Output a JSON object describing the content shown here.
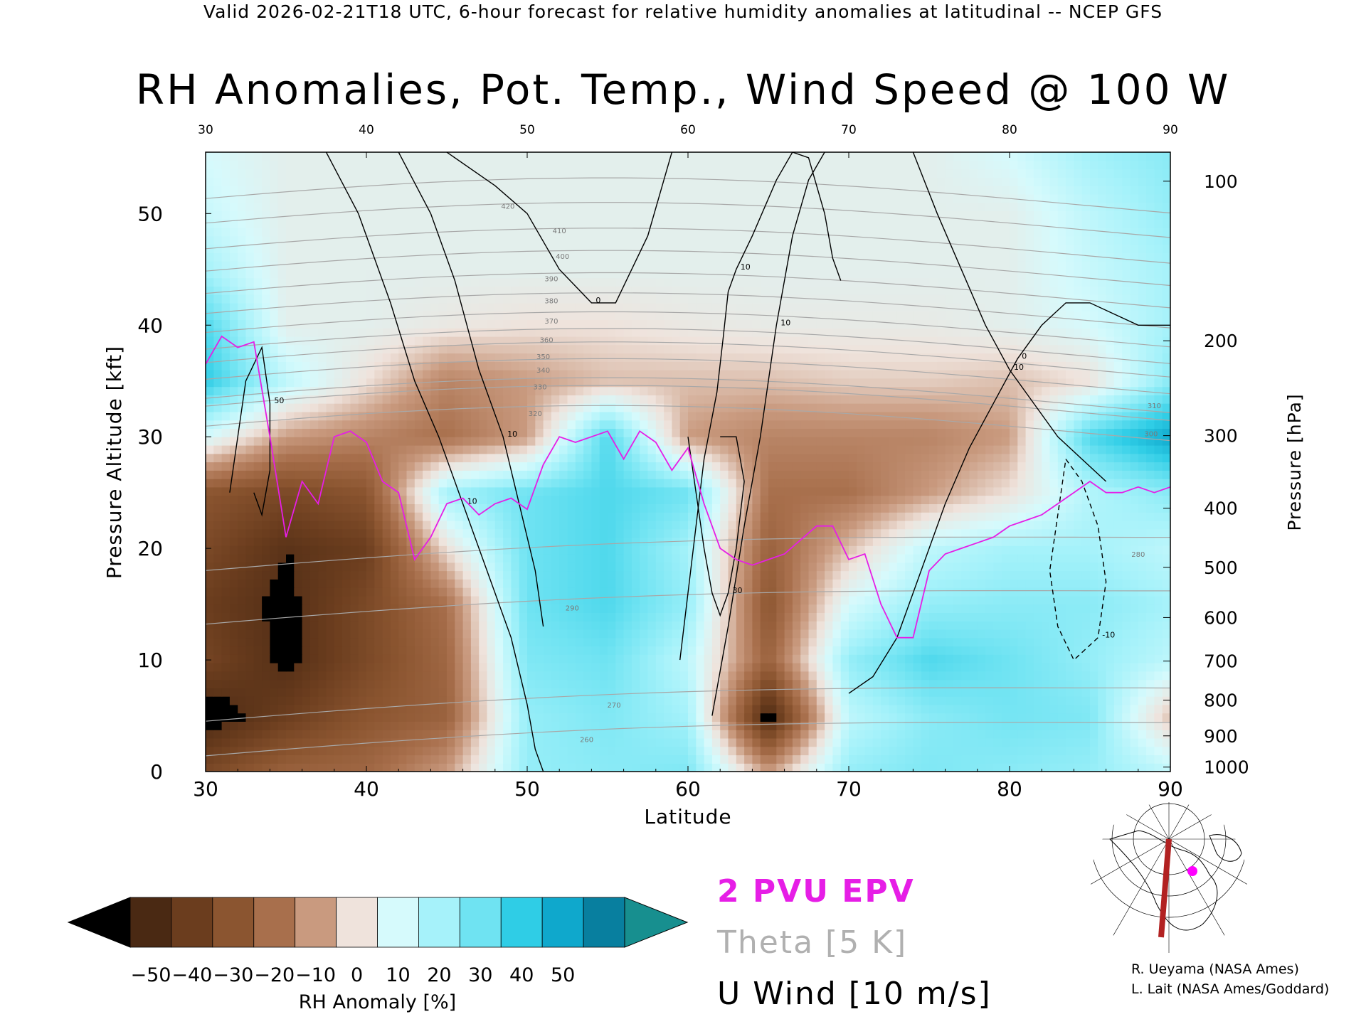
{
  "header": "Valid 2026-02-21T18 UTC, 6-hour forecast for relative humidity anomalies at latitudinal -- NCEP GFS",
  "title": "RH Anomalies, Pot. Temp., Wind Speed @ 100 W",
  "legend": {
    "epv": "2 PVU EPV",
    "theta": "Theta [5 K]",
    "wind": "U Wind [10 m/s]"
  },
  "credits": [
    "R. Ueyama (NASA Ames)",
    "L. Lait (NASA Ames/Goddard)"
  ],
  "colors": {
    "epv": "#e61ee6",
    "theta": "#a8a8a8",
    "wind": "#000000",
    "section_line": "#b22222",
    "location_dot": "#ff00ff"
  },
  "chart_data": {
    "type": "heatmap",
    "xlabel": "Latitude",
    "ylabel": "Pressure Altitude [kft]",
    "ylabel_right": "Pressure [hPa]",
    "xlim": [
      30,
      90
    ],
    "ylim": [
      0,
      55.5
    ],
    "x_ticks": [
      30,
      40,
      50,
      60,
      70,
      80,
      90
    ],
    "y_ticks": [
      0,
      10,
      20,
      30,
      40,
      50
    ],
    "pressure_ticks": [
      {
        "hpa": "100",
        "kft": 52.9
      },
      {
        "hpa": "200",
        "kft": 38.6
      },
      {
        "hpa": "300",
        "kft": 30.1
      },
      {
        "hpa": "400",
        "kft": 23.6
      },
      {
        "hpa": "500",
        "kft": 18.3
      },
      {
        "hpa": "600",
        "kft": 13.8
      },
      {
        "hpa": "700",
        "kft": 9.9
      },
      {
        "hpa": "800",
        "kft": 6.4
      },
      {
        "hpa": "900",
        "kft": 3.2
      },
      {
        "hpa": "1000",
        "kft": 0.4
      }
    ],
    "colorbar": {
      "label": "RH Anomaly [%]",
      "ticks": [
        -50,
        -40,
        -30,
        -20,
        -10,
        0,
        10,
        20,
        30,
        40,
        50
      ],
      "colors": [
        "#4a2913",
        "#6b3d1e",
        "#8b5530",
        "#a86f4c",
        "#c99a7f",
        "#efe3dc",
        "#d6fafc",
        "#a6f2fa",
        "#6fe3f2",
        "#2fcde6",
        "#0fa8cc",
        "#087f9f"
      ],
      "under_color": "#000000",
      "over_color": "#178f8f"
    },
    "rh_field": {
      "x": [
        30,
        35,
        40,
        45,
        50,
        55,
        60,
        65,
        70,
        75,
        80,
        85,
        90
      ],
      "y": [
        0,
        5,
        10,
        15,
        20,
        25,
        30,
        35,
        40,
        45,
        50,
        55
      ],
      "values": [
        [
          -40,
          -30,
          -28,
          -15,
          18,
          20,
          22,
          -15,
          18,
          22,
          20,
          18,
          10
        ],
        [
          -55,
          -45,
          -35,
          -30,
          18,
          22,
          15,
          -55,
          10,
          20,
          24,
          22,
          -10
        ],
        [
          -42,
          -52,
          -40,
          -28,
          22,
          25,
          10,
          -30,
          18,
          30,
          25,
          18,
          10
        ],
        [
          -45,
          -52,
          -40,
          -25,
          25,
          30,
          18,
          -35,
          5,
          18,
          20,
          20,
          15
        ],
        [
          -40,
          -50,
          -45,
          -5,
          25,
          30,
          15,
          -30,
          -10,
          10,
          15,
          15,
          10
        ],
        [
          -35,
          -40,
          -35,
          15,
          25,
          30,
          25,
          -25,
          -25,
          -15,
          -5,
          12,
          20
        ],
        [
          5,
          -15,
          -20,
          -25,
          -15,
          30,
          -15,
          -20,
          -20,
          -20,
          -15,
          30,
          45
        ],
        [
          35,
          10,
          -5,
          -20,
          -15,
          -10,
          -10,
          -10,
          -8,
          -8,
          -10,
          -5,
          20
        ],
        [
          30,
          0,
          0,
          -3,
          -5,
          -5,
          -3,
          -2,
          -2,
          -2,
          0,
          5,
          15
        ],
        [
          15,
          0,
          0,
          0,
          0,
          0,
          0,
          0,
          0,
          0,
          0,
          8,
          15
        ],
        [
          8,
          0,
          0,
          0,
          0,
          0,
          0,
          0,
          0,
          0,
          0,
          10,
          18
        ],
        [
          5,
          0,
          0,
          0,
          0,
          0,
          0,
          0,
          0,
          0,
          5,
          15,
          20
        ]
      ]
    },
    "theta_labels": [
      {
        "value": "260",
        "lat": 53.7,
        "kft": 2.9
      },
      {
        "value": "270",
        "lat": 55.4,
        "kft": 6.0
      },
      {
        "value": "280",
        "lat": 88.0,
        "kft": 19.5
      },
      {
        "value": "290",
        "lat": 52.8,
        "kft": 14.7
      },
      {
        "value": "300",
        "lat": 88.8,
        "kft": 30.3
      },
      {
        "value": "310",
        "lat": 89.0,
        "kft": 32.8
      },
      {
        "value": "320",
        "lat": 50.5,
        "kft": 32.1
      },
      {
        "value": "330",
        "lat": 50.8,
        "kft": 34.5
      },
      {
        "value": "340",
        "lat": 51.0,
        "kft": 36.0
      },
      {
        "value": "350",
        "lat": 51.0,
        "kft": 37.2
      },
      {
        "value": "360",
        "lat": 51.2,
        "kft": 38.7
      },
      {
        "value": "370",
        "lat": 51.5,
        "kft": 40.4
      },
      {
        "value": "380",
        "lat": 51.5,
        "kft": 42.2
      },
      {
        "value": "390",
        "lat": 51.5,
        "kft": 44.2
      },
      {
        "value": "400",
        "lat": 52.2,
        "kft": 46.2
      },
      {
        "value": "410",
        "lat": 52.0,
        "kft": 48.5
      },
      {
        "value": "420",
        "lat": 48.8,
        "kft": 50.7
      }
    ],
    "epv_2pvu": {
      "lat": [
        30,
        31,
        32,
        33,
        34,
        35,
        36,
        37,
        38,
        39,
        40,
        41,
        42,
        43,
        44,
        45,
        46,
        47,
        48,
        49,
        50,
        51,
        52,
        53,
        54,
        55,
        56,
        57,
        58,
        59,
        60,
        61,
        62,
        63,
        64,
        66,
        68,
        69,
        70,
        71,
        72,
        73,
        74,
        75,
        76,
        77,
        78,
        79,
        80,
        81,
        82,
        83,
        84,
        85,
        86,
        87,
        88,
        89,
        90
      ],
      "kft": [
        36.5,
        39,
        38,
        38.5,
        30,
        21,
        26,
        24,
        30,
        30.5,
        29.5,
        26,
        25,
        19,
        21,
        24,
        24.5,
        23,
        24,
        24.5,
        23.5,
        27.5,
        30,
        29.5,
        30,
        30.5,
        28,
        30.5,
        29.5,
        27,
        29,
        24,
        20,
        19,
        18.5,
        19.5,
        22,
        22,
        19,
        19.5,
        15,
        12,
        12,
        18,
        19.5,
        20,
        20.5,
        21,
        22,
        22.5,
        23,
        24,
        25,
        26,
        25,
        25,
        25.5,
        25,
        25.5
      ]
    },
    "u_wind_contours": [
      {
        "label": "10",
        "lat": [
          37.5,
          39.5,
          41.5,
          43,
          44.5,
          46,
          47.5,
          49,
          50,
          50.5,
          51
        ],
        "kft": [
          55.5,
          50,
          42,
          35,
          30,
          24,
          18,
          12,
          6,
          2,
          0
        ]
      },
      {
        "label": "10",
        "lat": [
          42,
          44,
          45.5,
          47,
          48.5,
          49.5,
          50.5,
          51
        ],
        "kft": [
          55.5,
          50,
          44,
          36,
          30,
          24,
          18,
          13
        ]
      },
      {
        "label": "0",
        "lat": [
          45,
          48,
          50,
          52,
          54,
          55.5,
          57.5,
          58.5,
          59
        ],
        "kft": [
          55.5,
          52.5,
          50,
          45,
          42,
          42,
          48,
          53,
          55.5
        ]
      },
      {
        "label": "10",
        "lat": [
          59.5,
          60,
          60.5,
          61,
          61.8,
          62.2,
          62.5,
          63,
          64,
          65.5,
          66.5,
          67.5,
          68.5,
          69,
          69.5
        ],
        "kft": [
          10,
          16,
          22,
          28,
          34,
          39,
          43,
          45,
          48,
          53,
          55.5,
          55,
          50,
          46,
          44
        ]
      },
      {
        "label": "10",
        "lat": [
          61.5,
          62.5,
          63.5,
          64.5,
          65.5,
          66.5,
          67.5,
          68.5
        ],
        "kft": [
          5,
          13,
          22,
          30,
          40,
          48,
          53,
          55.5
        ]
      },
      {
        "label": "0",
        "lat": [
          70,
          71.5,
          73,
          74.5,
          76,
          77.5,
          79,
          80.5,
          82,
          83.5,
          85,
          86.5,
          88,
          90
        ],
        "kft": [
          7,
          8.5,
          12,
          18,
          24,
          29,
          33,
          37,
          40,
          42,
          42,
          41,
          40,
          40
        ]
      },
      {
        "label": "10",
        "lat": [
          74,
          75.5,
          77,
          78.5,
          80,
          81.5,
          83,
          84.5,
          86
        ],
        "kft": [
          55.5,
          50,
          45,
          40,
          36,
          33,
          30,
          28,
          26
        ]
      },
      {
        "label": "-10",
        "lat": [
          83.5,
          84.5,
          85.5,
          86,
          85.5,
          84,
          83,
          82.5,
          83.5
        ],
        "kft": [
          28,
          26,
          22,
          17,
          12,
          10,
          13,
          18,
          28
        ],
        "dashed": true
      },
      {
        "label": "30",
        "lat": [
          60,
          60.5,
          61,
          61.5,
          62,
          62.5,
          63,
          63.5,
          63,
          62
        ],
        "kft": [
          30,
          25,
          20,
          16,
          14,
          16,
          20,
          26,
          30,
          30
        ]
      },
      {
        "label": "50",
        "lat": [
          31.5,
          32,
          32.5,
          33.5,
          34,
          34,
          33.5,
          33
        ],
        "kft": [
          25,
          30,
          35,
          38,
          33,
          27,
          23,
          25
        ]
      }
    ]
  },
  "inset_map_label": ""
}
